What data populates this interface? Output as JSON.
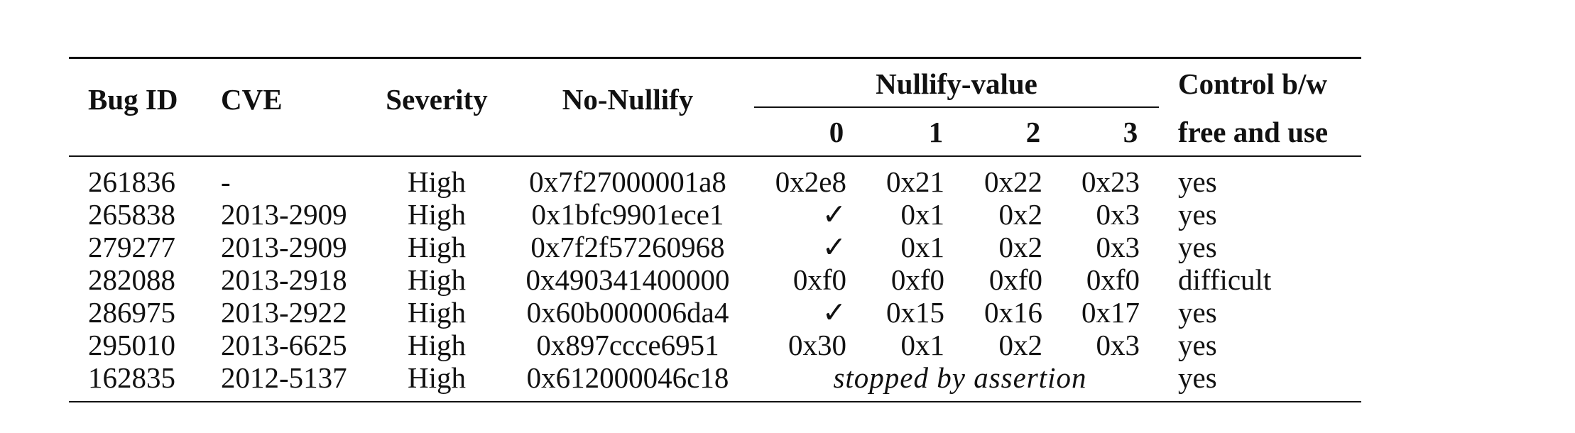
{
  "table": {
    "headers": {
      "bug_id": "Bug ID",
      "cve": "CVE",
      "severity": "Severity",
      "no_nullify": "No-Nullify",
      "nullify_value": "Nullify-value",
      "nullify_sub": [
        "0",
        "1",
        "2",
        "3"
      ],
      "control_line1": "Control b/w",
      "control_line2": "free and use"
    },
    "rows": [
      {
        "bug": "261836",
        "cve": "-",
        "sev": "High",
        "nonull": "0x7f27000001a8",
        "v": [
          "0x2e8",
          "0x21",
          "0x22",
          "0x23"
        ],
        "ctrl": "yes"
      },
      {
        "bug": "265838",
        "cve": "2013-2909",
        "sev": "High",
        "nonull": "0x1bfc9901ece1",
        "v": [
          "✓",
          "0x1",
          "0x2",
          "0x3"
        ],
        "ctrl": "yes"
      },
      {
        "bug": "279277",
        "cve": "2013-2909",
        "sev": "High",
        "nonull": "0x7f2f57260968",
        "v": [
          "✓",
          "0x1",
          "0x2",
          "0x3"
        ],
        "ctrl": "yes"
      },
      {
        "bug": "282088",
        "cve": "2013-2918",
        "sev": "High",
        "nonull": "0x490341400000",
        "v": [
          "0xf0",
          "0xf0",
          "0xf0",
          "0xf0"
        ],
        "ctrl": "difficult"
      },
      {
        "bug": "286975",
        "cve": "2013-2922",
        "sev": "High",
        "nonull": "0x60b000006da4",
        "v": [
          "✓",
          "0x15",
          "0x16",
          "0x17"
        ],
        "ctrl": "yes"
      },
      {
        "bug": "295010",
        "cve": "2013-6625",
        "sev": "High",
        "nonull": "0x897ccce6951",
        "v": [
          "0x30",
          "0x1",
          "0x2",
          "0x3"
        ],
        "ctrl": "yes"
      },
      {
        "bug": "162835",
        "cve": "2012-5137",
        "sev": "High",
        "nonull": "0x612000046c18",
        "span": "stopped by assertion",
        "ctrl": "yes"
      }
    ]
  }
}
